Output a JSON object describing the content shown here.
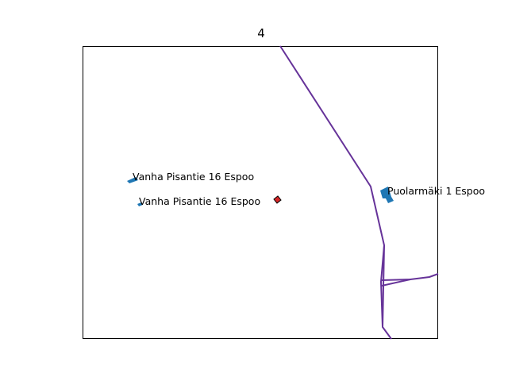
{
  "title": "4",
  "colors": {
    "road": "#663399",
    "building": "#1f77b4",
    "target": "#d62728",
    "frame": "#000000"
  },
  "labels": [
    {
      "id": "label-vanha-pisantie-1",
      "text": "Vanha Pisantie 16 Espoo"
    },
    {
      "id": "label-vanha-pisantie-2",
      "text": "Vanha Pisantie 16 Espoo"
    },
    {
      "id": "label-puolarmaki",
      "text": "Puolarmäki 1 Espoo"
    }
  ]
}
